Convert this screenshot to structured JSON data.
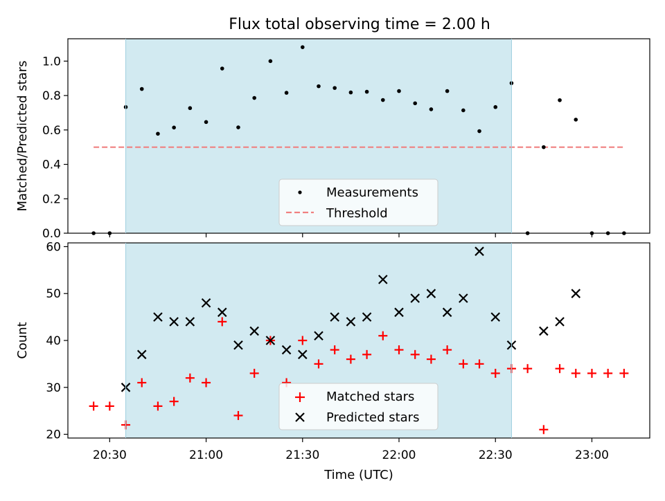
{
  "title": "Flux total observing time = 2.00 h",
  "chart_data": [
    {
      "type": "scatter",
      "ylabel": "Matched/Predicted stars",
      "ylim": [
        0,
        1.13
      ],
      "xlim": [
        "20:17",
        "23:18"
      ],
      "yticks": [
        "0.0",
        "0.2",
        "0.4",
        "0.6",
        "0.8",
        "1.0"
      ],
      "shaded_region": {
        "start": "20:35",
        "end": "22:35",
        "color": "#add8e6"
      },
      "legend_location": "bottom-center",
      "series": [
        {
          "name": "Measurements",
          "marker": "dot",
          "color": "#000000",
          "x": [
            "20:25",
            "20:30",
            "20:35",
            "20:40",
            "20:45",
            "20:50",
            "20:55",
            "21:00",
            "21:05",
            "21:10",
            "21:15",
            "21:20",
            "21:25",
            "21:30",
            "21:35",
            "21:40",
            "21:45",
            "21:50",
            "21:55",
            "22:00",
            "22:05",
            "22:10",
            "22:15",
            "22:20",
            "22:25",
            "22:30",
            "22:35",
            "22:40",
            "22:45",
            "22:50",
            "22:55",
            "23:00",
            "23:05",
            "23:10"
          ],
          "y": [
            0,
            0,
            0.733,
            0.838,
            0.578,
            0.614,
            0.727,
            0.646,
            0.957,
            0.615,
            0.786,
            1.0,
            0.816,
            1.081,
            0.854,
            0.844,
            0.818,
            0.822,
            0.774,
            0.826,
            0.755,
            0.72,
            0.826,
            0.714,
            0.593,
            0.733,
            0.872,
            0,
            0.5,
            0.773,
            0.66,
            0,
            0,
            0
          ]
        },
        {
          "name": "Threshold",
          "line": "dashed",
          "color": "#f08080",
          "x": [
            "20:25",
            "23:10"
          ],
          "y": [
            0.5,
            0.5
          ]
        }
      ]
    },
    {
      "type": "scatter",
      "xlabel": "Time (UTC)",
      "ylabel": "Count",
      "ylim": [
        19.2,
        60.8
      ],
      "xlim": [
        "20:17",
        "23:18"
      ],
      "xticks": [
        "20:30",
        "21:00",
        "21:30",
        "22:00",
        "22:30",
        "23:00"
      ],
      "yticks": [
        "20",
        "30",
        "40",
        "50",
        "60"
      ],
      "shaded_region": {
        "start": "20:35",
        "end": "22:35",
        "color": "#add8e6"
      },
      "legend_location": "bottom-center",
      "series": [
        {
          "name": "Matched stars",
          "marker": "plus",
          "color": "#ff0000",
          "x": [
            "20:25",
            "20:30",
            "20:35",
            "20:40",
            "20:45",
            "20:50",
            "20:55",
            "21:00",
            "21:05",
            "21:10",
            "21:15",
            "21:20",
            "21:25",
            "21:30",
            "21:35",
            "21:40",
            "21:45",
            "21:50",
            "21:55",
            "22:00",
            "22:05",
            "22:10",
            "22:15",
            "22:20",
            "22:25",
            "22:30",
            "22:35",
            "22:40",
            "22:45",
            "22:50",
            "22:55",
            "23:00",
            "23:05",
            "23:10"
          ],
          "y": [
            26,
            26,
            22,
            31,
            26,
            27,
            32,
            31,
            44,
            24,
            33,
            40,
            31,
            40,
            35,
            38,
            36,
            37,
            41,
            38,
            37,
            36,
            38,
            35,
            35,
            33,
            34,
            34,
            21,
            34,
            33,
            33,
            33,
            33
          ]
        },
        {
          "name": "Predicted stars",
          "marker": "x",
          "color": "#000000",
          "x": [
            "20:35",
            "20:40",
            "20:45",
            "20:50",
            "20:55",
            "21:00",
            "21:05",
            "21:10",
            "21:15",
            "21:20",
            "21:25",
            "21:30",
            "21:35",
            "21:40",
            "21:45",
            "21:50",
            "21:55",
            "22:00",
            "22:05",
            "22:10",
            "22:15",
            "22:20",
            "22:25",
            "22:30",
            "22:35",
            "22:45",
            "22:50",
            "22:55"
          ],
          "y": [
            30,
            37,
            45,
            44,
            44,
            48,
            46,
            39,
            42,
            40,
            38,
            37,
            41,
            45,
            44,
            45,
            53,
            46,
            49,
            50,
            46,
            49,
            59,
            45,
            39,
            42,
            44,
            50
          ]
        }
      ]
    }
  ]
}
